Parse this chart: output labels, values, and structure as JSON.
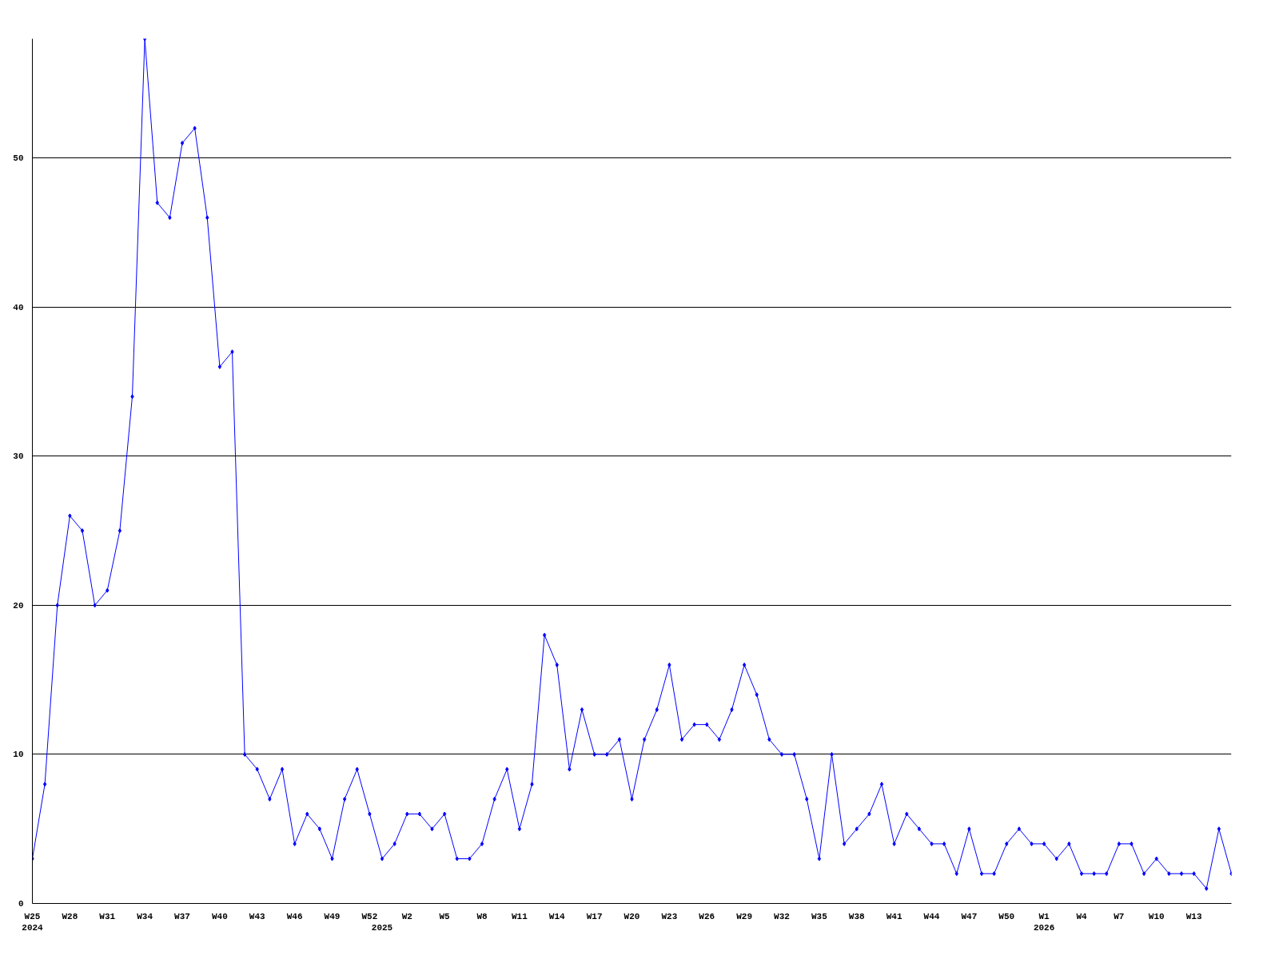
{
  "chart_data": {
    "type": "line",
    "categories": [
      "W25\n2024",
      null,
      null,
      "W28",
      null,
      null,
      "W31",
      null,
      null,
      "W34",
      null,
      null,
      "W37",
      null,
      null,
      "W40",
      null,
      null,
      "W43",
      null,
      null,
      "W46",
      null,
      null,
      "W49",
      null,
      null,
      "W52",
      "\n2025",
      null,
      "W2",
      null,
      null,
      "W5",
      null,
      null,
      "W8",
      null,
      null,
      "W11",
      null,
      null,
      "W14",
      null,
      null,
      "W17",
      null,
      null,
      "W20",
      null,
      null,
      "W23",
      null,
      null,
      "W26",
      null,
      null,
      "W29",
      null,
      null,
      "W32",
      null,
      null,
      "W35",
      null,
      null,
      "W38",
      null,
      null,
      "W41",
      null,
      null,
      "W44",
      null,
      null,
      "W47",
      null,
      null,
      "W50",
      null,
      null,
      "W1\n2026",
      null,
      null,
      "W4",
      null,
      null,
      "W7",
      null,
      null,
      "W10",
      null,
      null,
      "W13",
      null,
      null,
      null
    ],
    "series": [
      {
        "color": "#0000ff",
        "values": [
          3,
          8,
          20,
          26,
          25,
          20,
          21,
          25,
          34,
          58,
          47,
          46,
          51,
          52,
          46,
          36,
          37,
          10,
          9,
          7,
          9,
          4,
          6,
          5,
          3,
          7,
          9,
          6,
          3,
          4,
          6,
          6,
          5,
          6,
          3,
          3,
          4,
          7,
          9,
          5,
          8,
          18,
          16,
          9,
          13,
          10,
          10,
          11,
          7,
          11,
          13,
          16,
          11,
          12,
          12,
          11,
          13,
          16,
          14,
          11,
          10,
          10,
          7,
          3,
          10,
          4,
          5,
          6,
          8,
          4,
          6,
          5,
          4,
          4,
          2,
          5,
          2,
          2,
          4,
          5,
          4,
          4,
          3,
          4,
          2,
          2,
          2,
          4,
          4,
          2,
          3,
          2,
          2,
          2,
          1,
          5,
          2
        ]
      }
    ],
    "ylim": [
      0,
      58
    ],
    "yticks": [
      0,
      10,
      20,
      30,
      40,
      50
    ],
    "grid": "y",
    "marker": "diamond",
    "line_style": "solid"
  }
}
